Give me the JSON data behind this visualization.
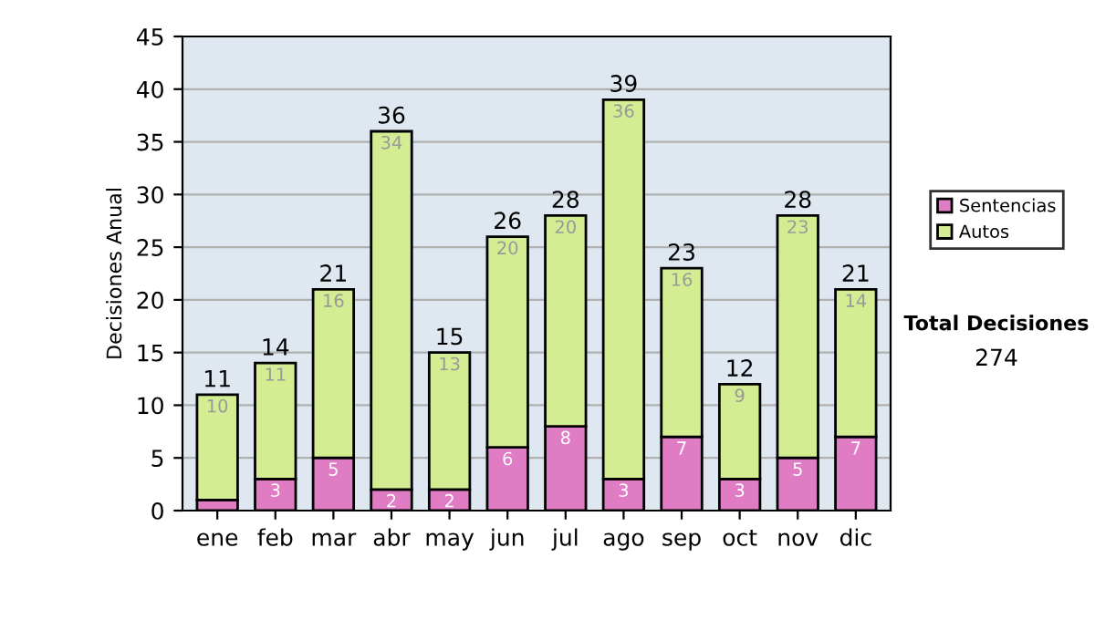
{
  "chart_data": {
    "type": "bar",
    "stacked": true,
    "ylabel": "Decisiones Anual",
    "categories": [
      "ene",
      "feb",
      "mar",
      "abr",
      "may",
      "jun",
      "jul",
      "ago",
      "sep",
      "oct",
      "nov",
      "dic"
    ],
    "series": [
      {
        "name": "Sentencias",
        "color": "#e07cc4",
        "values": [
          1,
          3,
          5,
          2,
          2,
          6,
          8,
          3,
          7,
          3,
          5,
          7
        ],
        "value_labels": [
          null,
          "3",
          "5",
          "2",
          "2",
          "6",
          "8",
          "3",
          "7",
          "3",
          "5",
          "7"
        ]
      },
      {
        "name": "Autos",
        "color": "#d4ec92",
        "values": [
          10,
          11,
          16,
          34,
          13,
          20,
          20,
          36,
          16,
          9,
          23,
          14
        ],
        "value_labels": [
          "10",
          "11",
          "16",
          "34",
          "13",
          "20",
          "20",
          "36",
          "16",
          "9",
          "23",
          "14"
        ]
      }
    ],
    "totals": [
      "11",
      "14",
      "21",
      "36",
      "15",
      "26",
      "28",
      "39",
      "23",
      "12",
      "28",
      "21"
    ],
    "ylim": [
      0,
      45
    ],
    "yticks": [
      0,
      5,
      10,
      15,
      20,
      25,
      30,
      35,
      40,
      45
    ],
    "grid": "y",
    "legend": "right",
    "annotations": [
      "Total Decisiones",
      "274"
    ]
  }
}
